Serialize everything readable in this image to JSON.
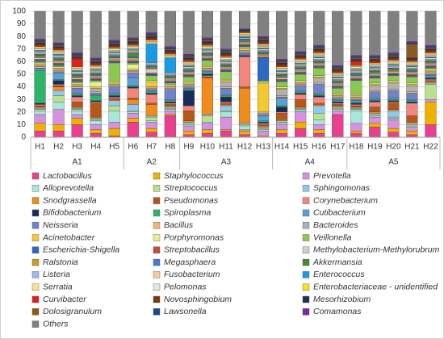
{
  "chart_data": {
    "type": "stacked_bar",
    "categories": [
      "H1",
      "H2",
      "H3",
      "H4",
      "H5",
      "H6",
      "H7",
      "H8",
      "H9",
      "H10",
      "H11",
      "H12",
      "H13",
      "H14",
      "H15",
      "H16",
      "H17",
      "H18",
      "H19",
      "H20",
      "H21",
      "H22"
    ],
    "groups": [
      {
        "name": "A1",
        "size": 5
      },
      {
        "name": "A2",
        "size": 3
      },
      {
        "name": "A3",
        "size": 5
      },
      {
        "name": "A4",
        "size": 4
      },
      {
        "name": "A5",
        "size": 5
      }
    ],
    "ylim": [
      0,
      100
    ],
    "yticks": [
      0,
      10,
      20,
      30,
      40,
      50,
      60,
      70,
      80,
      90,
      100
    ],
    "grid": true,
    "legend": "bottom",
    "series": [
      {
        "name": "Lactobacillus",
        "color": "#e8408c",
        "values": [
          5,
          5,
          10,
          3,
          1,
          12,
          4,
          17,
          2,
          3,
          5,
          2,
          0,
          3,
          7,
          3,
          18,
          3,
          8,
          4,
          2,
          10
        ]
      },
      {
        "name": "Staphylococcus",
        "color": "#f0b000",
        "values": [
          6,
          5,
          5,
          3,
          6,
          3,
          3,
          1,
          3,
          3,
          1,
          3,
          1,
          3,
          5,
          3,
          0,
          2,
          3,
          3,
          3,
          18
        ]
      },
      {
        "name": "Prevotella",
        "color": "#d890e0",
        "values": [
          7,
          12,
          3,
          4,
          5,
          4,
          5,
          3,
          4,
          5,
          10,
          1,
          4,
          4,
          8,
          4,
          3,
          6,
          5,
          7,
          3,
          2
        ]
      },
      {
        "name": "Alloprevotella",
        "color": "#a8e6d8",
        "values": [
          3,
          6,
          3,
          3,
          9,
          1,
          1,
          1,
          1,
          1,
          4,
          3,
          1,
          1,
          1,
          4,
          1,
          10,
          1,
          1,
          1,
          0
        ]
      },
      {
        "name": "Streptococcus",
        "color": "#b8e090",
        "values": [
          1,
          5,
          1,
          1,
          4,
          1,
          3,
          1,
          1,
          5,
          1,
          1,
          1,
          1,
          1,
          5,
          1,
          1,
          1,
          1,
          1,
          12
        ]
      },
      {
        "name": "Sphingomonas",
        "color": "#90c8f0",
        "values": [
          1,
          4,
          1,
          1,
          4,
          5,
          1,
          1,
          1,
          1,
          4,
          1,
          1,
          1,
          1,
          6,
          1,
          1,
          1,
          5,
          1,
          1
        ]
      },
      {
        "name": "Snodgrassella",
        "color": "#f08c1c",
        "values": [
          1,
          3,
          1,
          1,
          1,
          4,
          9,
          1,
          1,
          29,
          1,
          28,
          1,
          1,
          1,
          1,
          1,
          1,
          1,
          1,
          1,
          1
        ]
      },
      {
        "name": "Pseudomonas",
        "color": "#b5561b",
        "values": [
          1,
          1,
          4,
          11,
          1,
          1,
          1,
          1,
          8,
          1,
          1,
          1,
          1,
          5,
          6,
          1,
          1,
          1,
          4,
          5,
          5,
          1
        ]
      },
      {
        "name": "Corynebacterium",
        "color": "#f4857a",
        "values": [
          1,
          1,
          4,
          1,
          1,
          8,
          7,
          1,
          4,
          1,
          1,
          24,
          1,
          1,
          4,
          5,
          1,
          1,
          4,
          1,
          10,
          1
        ]
      },
      {
        "name": "Bifidobacterium",
        "color": "#1a2a5a",
        "values": [
          1,
          3,
          1,
          1,
          1,
          1,
          1,
          1,
          12,
          1,
          4,
          1,
          1,
          4,
          1,
          1,
          1,
          1,
          1,
          1,
          1,
          1
        ]
      },
      {
        "name": "Spiroplasma",
        "color": "#2eb36b",
        "values": [
          26,
          1,
          1,
          4,
          1,
          1,
          1,
          1,
          1,
          1,
          1,
          0,
          1,
          1,
          1,
          1,
          1,
          1,
          1,
          1,
          1,
          1
        ]
      },
      {
        "name": "Cutibacterium",
        "color": "#5aa0d8",
        "values": [
          1,
          5,
          1,
          1,
          1,
          6,
          1,
          1,
          1,
          1,
          1,
          1,
          4,
          6,
          1,
          1,
          1,
          1,
          1,
          1,
          1,
          1
        ]
      },
      {
        "name": "Neisseria",
        "color": "#6d84c8",
        "values": [
          1,
          1,
          4,
          1,
          5,
          4,
          1,
          8,
          1,
          1,
          5,
          1,
          1,
          1,
          4,
          7,
          1,
          1,
          5,
          6,
          5,
          1
        ]
      },
      {
        "name": "Bacillus",
        "color": "#f5b27a",
        "values": [
          1,
          1,
          1,
          1,
          1,
          1,
          1,
          1,
          1,
          1,
          1,
          1,
          1,
          1,
          1,
          1,
          1,
          1,
          1,
          1,
          1,
          1
        ]
      },
      {
        "name": "Bacteroides",
        "color": "#b0b0b0",
        "values": [
          1,
          1,
          1,
          3,
          1,
          1,
          1,
          1,
          1,
          1,
          4,
          1,
          1,
          5,
          1,
          4,
          1,
          1,
          4,
          5,
          5,
          1
        ]
      },
      {
        "name": "Acinetobacter",
        "color": "#f5c830",
        "values": [
          1,
          1,
          1,
          1,
          1,
          1,
          4,
          1,
          1,
          1,
          1,
          1,
          23,
          1,
          1,
          1,
          1,
          1,
          1,
          1,
          1,
          1
        ]
      },
      {
        "name": "Porphyromonas",
        "color": "#e6f08a",
        "values": [
          1,
          1,
          1,
          4,
          1,
          4,
          1,
          1,
          1,
          1,
          1,
          1,
          1,
          1,
          1,
          1,
          1,
          1,
          1,
          1,
          1,
          1
        ]
      },
      {
        "name": "Veillonella",
        "color": "#8cc850",
        "values": [
          1,
          1,
          1,
          1,
          15,
          1,
          4,
          1,
          4,
          4,
          6,
          1,
          1,
          4,
          5,
          6,
          4,
          11,
          4,
          4,
          5,
          1
        ]
      },
      {
        "name": "Escherichia-Shigella",
        "color": "#2a6ac0",
        "values": [
          1,
          1,
          1,
          1,
          1,
          1,
          1,
          1,
          1,
          1,
          1,
          1,
          18,
          1,
          1,
          1,
          1,
          1,
          1,
          1,
          1,
          1
        ]
      },
      {
        "name": "Streptobacillus",
        "color": "#c0503c",
        "values": [
          1,
          1,
          1,
          1,
          1,
          1,
          1,
          1,
          1,
          1,
          1,
          1,
          1,
          1,
          1,
          1,
          1,
          1,
          1,
          1,
          1,
          1
        ]
      },
      {
        "name": "Methylobacterium-Methylorubrum",
        "color": "#d0d0d0",
        "values": [
          1,
          1,
          1,
          1,
          1,
          1,
          3,
          1,
          1,
          1,
          1,
          1,
          1,
          1,
          1,
          1,
          1,
          1,
          1,
          1,
          1,
          1
        ]
      },
      {
        "name": "Ralstonia",
        "color": "#c8a020",
        "values": [
          1,
          1,
          1,
          1,
          1,
          1,
          1,
          1,
          1,
          1,
          1,
          1,
          1,
          1,
          1,
          1,
          1,
          1,
          1,
          1,
          1,
          1
        ]
      },
      {
        "name": "Megasphaera",
        "color": "#4a7ac8",
        "values": [
          1,
          1,
          1,
          1,
          1,
          1,
          1,
          1,
          1,
          1,
          1,
          1,
          1,
          1,
          1,
          1,
          1,
          1,
          1,
          1,
          1,
          1
        ]
      },
      {
        "name": "Akkermansia",
        "color": "#4a8a30",
        "values": [
          1,
          1,
          1,
          1,
          1,
          3,
          1,
          1,
          1,
          1,
          1,
          1,
          1,
          1,
          1,
          1,
          1,
          1,
          1,
          1,
          1,
          1
        ]
      },
      {
        "name": "Listeria",
        "color": "#a0b8e8",
        "values": [
          1,
          1,
          1,
          1,
          1,
          1,
          1,
          1,
          1,
          1,
          1,
          1,
          1,
          1,
          1,
          1,
          1,
          1,
          1,
          1,
          1,
          1
        ]
      },
      {
        "name": "Fusobacterium",
        "color": "#f8c8a0",
        "values": [
          1,
          1,
          1,
          1,
          1,
          1,
          1,
          1,
          1,
          1,
          1,
          0,
          1,
          1,
          1,
          1,
          1,
          1,
          1,
          1,
          1,
          1
        ]
      },
      {
        "name": "Enterococcus",
        "color": "#1a9ae0",
        "values": [
          1,
          1,
          1,
          1,
          1,
          1,
          15,
          12,
          1,
          1,
          1,
          1,
          1,
          1,
          1,
          1,
          1,
          1,
          1,
          1,
          1,
          1
        ]
      },
      {
        "name": "Serratia",
        "color": "#fce08a",
        "values": [
          1,
          1,
          1,
          1,
          1,
          1,
          1,
          1,
          1,
          1,
          1,
          1,
          1,
          1,
          1,
          1,
          1,
          1,
          1,
          1,
          1,
          1
        ]
      },
      {
        "name": "Pelomonas",
        "color": "#e4e4e4",
        "values": [
          1,
          1,
          1,
          1,
          1,
          1,
          1,
          1,
          1,
          1,
          1,
          1,
          1,
          1,
          1,
          1,
          1,
          1,
          1,
          1,
          1,
          1
        ]
      },
      {
        "name": "Enterobacteriaceae - unidentified",
        "color": "#f8e020",
        "values": [
          1,
          1,
          1,
          1,
          1,
          1,
          1,
          1,
          1,
          1,
          1,
          1,
          1,
          1,
          1,
          1,
          1,
          1,
          1,
          1,
          1,
          1
        ]
      },
      {
        "name": "Curvibacter",
        "color": "#e02020",
        "values": [
          1,
          1,
          6,
          1,
          1,
          1,
          1,
          1,
          1,
          1,
          1,
          1,
          1,
          1,
          1,
          1,
          1,
          3,
          1,
          1,
          1,
          1
        ]
      },
      {
        "name": "Novosphingobium",
        "color": "#7a3a10",
        "values": [
          1,
          1,
          1,
          1,
          1,
          1,
          1,
          1,
          1,
          1,
          1,
          0,
          1,
          1,
          1,
          1,
          1,
          1,
          1,
          1,
          1,
          1
        ]
      },
      {
        "name": "Mesorhizobium",
        "color": "#203050",
        "values": [
          1,
          1,
          1,
          1,
          1,
          1,
          1,
          1,
          1,
          1,
          1,
          1,
          1,
          1,
          1,
          1,
          1,
          1,
          1,
          1,
          1,
          1
        ]
      },
      {
        "name": "Dolosigranulum",
        "color": "#8a5a20",
        "values": [
          1,
          1,
          1,
          1,
          1,
          1,
          1,
          1,
          1,
          1,
          1,
          0,
          1,
          1,
          1,
          1,
          1,
          1,
          1,
          1,
          11,
          1
        ]
      },
      {
        "name": "Lawsonella",
        "color": "#1a4a8a",
        "values": [
          1,
          1,
          1,
          1,
          1,
          1,
          1,
          1,
          1,
          1,
          1,
          1,
          1,
          1,
          1,
          1,
          1,
          1,
          1,
          1,
          1,
          1
        ]
      },
      {
        "name": "Comamonas",
        "color": "#7a2aa0",
        "values": [
          1,
          1,
          1,
          1,
          1,
          1,
          1,
          1,
          1,
          1,
          1,
          0,
          1,
          1,
          1,
          1,
          1,
          1,
          1,
          1,
          1,
          1
        ]
      },
      {
        "name": "Others",
        "color": "#808080",
        "values": [
          22,
          25,
          33,
          37,
          23,
          21,
          17,
          28,
          34,
          21,
          30,
          14,
          20,
          38,
          32,
          27,
          43,
          35,
          35,
          33,
          24,
          27
        ]
      }
    ]
  }
}
